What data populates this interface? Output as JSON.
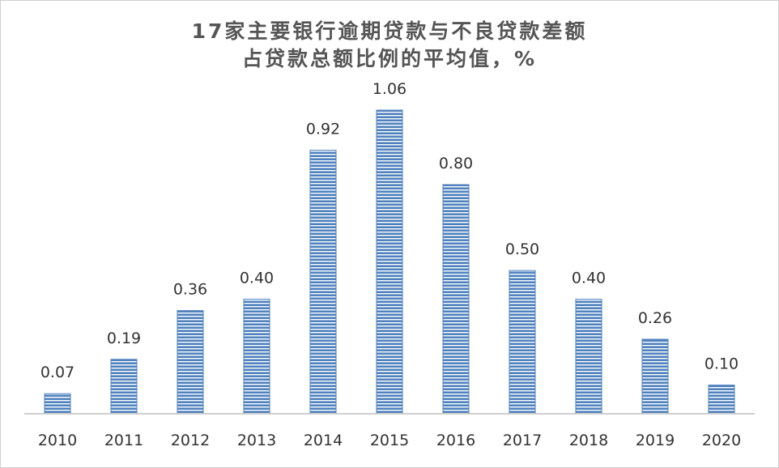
{
  "chart_data": {
    "type": "bar",
    "title_line1": "17家主要银行逾期贷款与不良贷款差额",
    "title_line2": "占贷款总额比例的平均值，%",
    "xlabel": "",
    "ylabel": "",
    "categories": [
      "2010",
      "2011",
      "2012",
      "2013",
      "2014",
      "2015",
      "2016",
      "2017",
      "2018",
      "2019",
      "2020"
    ],
    "values": [
      0.07,
      0.19,
      0.36,
      0.4,
      0.92,
      1.06,
      0.8,
      0.5,
      0.4,
      0.26,
      0.1
    ],
    "value_labels": [
      "0.07",
      "0.19",
      "0.36",
      "0.40",
      "0.92",
      "1.06",
      "0.80",
      "0.50",
      "0.40",
      "0.26",
      "0.10"
    ],
    "ylim": [
      0,
      1.06
    ],
    "grid": false,
    "legend": "none",
    "bar_color": "#4f81bd",
    "bar_stripe_color": "#ffffff",
    "bar_fill_pattern": "horizontal-stripes"
  }
}
